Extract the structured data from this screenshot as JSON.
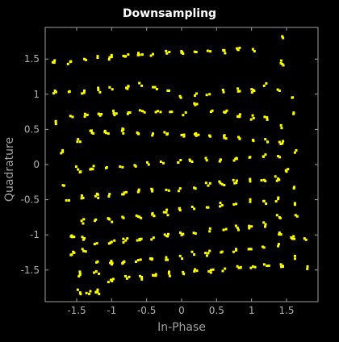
{
  "chart_data": {
    "type": "scatter",
    "title": "Downsampling",
    "xlabel": "In-Phase",
    "ylabel": "Quadrature",
    "xlim": [
      -1.95,
      1.95
    ],
    "ylim": [
      -1.95,
      1.95
    ],
    "xticks": [
      "-1.5",
      "-1",
      "-0.5",
      "0",
      "0.5",
      "1",
      "1.5"
    ],
    "yticks": [
      "1.5",
      "1",
      "0.5",
      "0",
      "-0.5",
      "-1",
      "-1.5"
    ],
    "grid": false,
    "marker_color": "#ffff00",
    "axis_color": "#a0a0a0",
    "background": "#000000",
    "series": [
      {
        "points": [
          [
            -1.82,
            1.45
          ],
          [
            -1.59,
            1.46
          ],
          [
            -1.39,
            1.5
          ],
          [
            -1.2,
            1.52
          ],
          [
            -1.0,
            1.53
          ],
          [
            -0.8,
            1.54
          ],
          [
            -0.6,
            1.56
          ],
          [
            -0.41,
            1.57
          ],
          [
            -0.21,
            1.58
          ],
          [
            0.0,
            1.59
          ],
          [
            0.21,
            1.6
          ],
          [
            0.41,
            1.61
          ],
          [
            0.61,
            1.62
          ],
          [
            0.81,
            1.63
          ],
          [
            1.02,
            1.64
          ],
          [
            1.42,
            1.44
          ],
          [
            1.45,
            1.8
          ],
          [
            -1.81,
            1.05
          ],
          [
            -1.6,
            1.04
          ],
          [
            -1.39,
            1.05
          ],
          [
            -1.19,
            1.06
          ],
          [
            -0.99,
            1.07
          ],
          [
            -0.79,
            1.09
          ],
          [
            -0.57,
            1.12
          ],
          [
            -0.38,
            1.1
          ],
          [
            -0.18,
            1.05
          ],
          [
            -0.01,
            0.95
          ],
          [
            0.19,
            0.98
          ],
          [
            0.4,
            1.0
          ],
          [
            0.6,
            1.03
          ],
          [
            0.81,
            1.04
          ],
          [
            1.02,
            1.06
          ],
          [
            1.18,
            1.12
          ],
          [
            1.4,
            1.05
          ],
          [
            1.58,
            0.95
          ],
          [
            -1.8,
            0.61
          ],
          [
            -1.59,
            0.69
          ],
          [
            -1.38,
            0.72
          ],
          [
            -1.18,
            0.72
          ],
          [
            -0.97,
            0.73
          ],
          [
            -0.76,
            0.74
          ],
          [
            -0.56,
            0.76
          ],
          [
            -0.34,
            0.76
          ],
          [
            -0.14,
            0.75
          ],
          [
            0.06,
            0.74
          ],
          [
            0.22,
            0.86
          ],
          [
            0.42,
            0.75
          ],
          [
            0.62,
            0.74
          ],
          [
            0.83,
            0.68
          ],
          [
            1.03,
            0.66
          ],
          [
            1.22,
            0.67
          ],
          [
            1.43,
            0.52
          ],
          [
            1.4,
            0.32
          ],
          [
            1.6,
            0.72
          ],
          [
            -1.7,
            0.18
          ],
          [
            -1.48,
            0.36
          ],
          [
            -1.28,
            0.45
          ],
          [
            -1.08,
            0.45
          ],
          [
            -0.85,
            0.48
          ],
          [
            -0.62,
            0.44
          ],
          [
            -0.41,
            0.44
          ],
          [
            -0.21,
            0.43
          ],
          [
            0.0,
            0.42
          ],
          [
            0.21,
            0.41
          ],
          [
            0.41,
            0.4
          ],
          [
            0.61,
            0.38
          ],
          [
            0.83,
            0.37
          ],
          [
            1.02,
            0.35
          ],
          [
            1.23,
            0.32
          ],
          [
            1.44,
            0.3
          ],
          [
            -1.68,
            -0.3
          ],
          [
            -1.48,
            -0.07
          ],
          [
            -1.29,
            -0.06
          ],
          [
            -1.08,
            -0.05
          ],
          [
            -0.88,
            -0.03
          ],
          [
            -0.67,
            -0.01
          ],
          [
            -0.47,
            0.0
          ],
          [
            -0.26,
            0.02
          ],
          [
            -0.05,
            0.03
          ],
          [
            0.15,
            0.04
          ],
          [
            0.36,
            0.06
          ],
          [
            0.56,
            0.07
          ],
          [
            0.77,
            0.08
          ],
          [
            0.97,
            0.1
          ],
          [
            1.17,
            0.11
          ],
          [
            1.38,
            0.12
          ],
          [
            1.62,
            0.17
          ],
          [
            1.5,
            -0.1
          ],
          [
            1.61,
            -0.32
          ],
          [
            -1.61,
            -0.51
          ],
          [
            -1.43,
            -0.48
          ],
          [
            -1.23,
            -0.45
          ],
          [
            -1.03,
            -0.42
          ],
          [
            -0.82,
            -0.4
          ],
          [
            -0.62,
            -0.39
          ],
          [
            -0.42,
            -0.38
          ],
          [
            -0.22,
            -0.36
          ],
          [
            -0.02,
            -0.34
          ],
          [
            0.18,
            -0.33
          ],
          [
            0.38,
            -0.3
          ],
          [
            0.58,
            -0.28
          ],
          [
            0.78,
            -0.26
          ],
          [
            0.98,
            -0.24
          ],
          [
            1.18,
            -0.22
          ],
          [
            1.38,
            -0.2
          ],
          [
            1.62,
            -0.55
          ],
          [
            -1.43,
            -0.8
          ],
          [
            -1.24,
            -0.8
          ],
          [
            -1.03,
            -0.78
          ],
          [
            -0.83,
            -0.76
          ],
          [
            -0.62,
            -0.74
          ],
          [
            -0.42,
            -0.71
          ],
          [
            -0.22,
            -0.68
          ],
          [
            -0.02,
            -0.65
          ],
          [
            0.18,
            -0.63
          ],
          [
            0.38,
            -0.61
          ],
          [
            0.58,
            -0.58
          ],
          [
            0.78,
            -0.56
          ],
          [
            0.98,
            -0.53
          ],
          [
            1.18,
            -0.52
          ],
          [
            1.38,
            -0.49
          ],
          [
            1.4,
            -0.75
          ],
          [
            1.63,
            -0.72
          ],
          [
            -1.57,
            -1.01
          ],
          [
            -1.42,
            -1.03
          ],
          [
            -1.21,
            -1.12
          ],
          [
            -1.0,
            -1.1
          ],
          [
            -0.8,
            -1.08
          ],
          [
            -0.6,
            -1.06
          ],
          [
            -0.4,
            -1.04
          ],
          [
            -0.2,
            -1.02
          ],
          [
            0.0,
            -1.0
          ],
          [
            0.2,
            -0.98
          ],
          [
            0.4,
            -0.95
          ],
          [
            0.6,
            -0.93
          ],
          [
            0.8,
            -0.9
          ],
          [
            1.0,
            -0.88
          ],
          [
            1.2,
            -0.85
          ],
          [
            1.4,
            -0.97
          ],
          [
            1.6,
            -1.02
          ],
          [
            -1.57,
            -1.28
          ],
          [
            -1.4,
            -1.23
          ],
          [
            -1.2,
            -1.38
          ],
          [
            -1.02,
            -1.4
          ],
          [
            -0.82,
            -1.38
          ],
          [
            -0.62,
            -1.36
          ],
          [
            -0.42,
            -1.34
          ],
          [
            -0.22,
            -1.32
          ],
          [
            -0.02,
            -1.3
          ],
          [
            0.18,
            -1.28
          ],
          [
            0.38,
            -1.26
          ],
          [
            0.58,
            -1.24
          ],
          [
            0.78,
            -1.22
          ],
          [
            0.98,
            -1.2
          ],
          [
            1.18,
            -1.18
          ],
          [
            1.38,
            -1.16
          ],
          [
            1.78,
            -1.07
          ],
          [
            -1.45,
            -1.55
          ],
          [
            -1.22,
            -1.52
          ],
          [
            -1.01,
            -1.64
          ],
          [
            -0.78,
            -1.62
          ],
          [
            -0.57,
            -1.6
          ],
          [
            -0.37,
            -1.58
          ],
          [
            -0.18,
            -1.55
          ],
          [
            0.02,
            -1.53
          ],
          [
            0.22,
            -1.51
          ],
          [
            0.42,
            -1.5
          ],
          [
            0.62,
            -1.48
          ],
          [
            0.82,
            -1.47
          ],
          [
            1.02,
            -1.45
          ],
          [
            1.22,
            -1.44
          ],
          [
            1.42,
            -1.42
          ],
          [
            1.62,
            -1.3
          ],
          [
            1.8,
            -1.45
          ],
          [
            -1.45,
            -1.82
          ],
          [
            -1.2,
            -1.78
          ],
          [
            -1.18,
            -1.84
          ],
          [
            -1.32,
            -1.84
          ]
        ]
      }
    ]
  }
}
